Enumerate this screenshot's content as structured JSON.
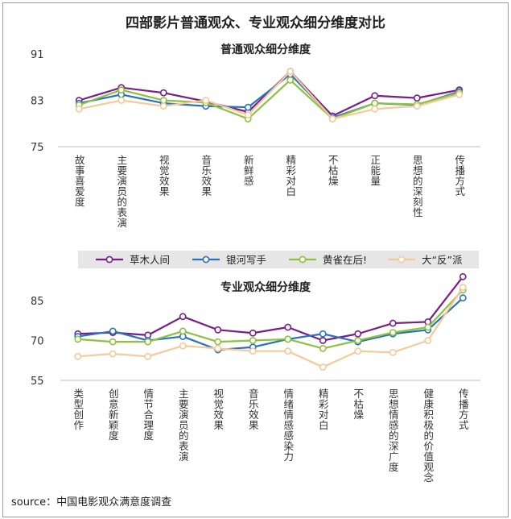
{
  "title": "四部影片普通观众、专业观众细分维度对比",
  "source_label": "source：中国电影观众满意度调查",
  "colors": {
    "草木人间": "#7a1d8a",
    "银河写手": "#2b72bd",
    "黄雀在后!": "#8cc23f",
    "大“反”派": "#f5c99a"
  },
  "legend": [
    "草木人间",
    "银河写手",
    "黄雀在后!",
    "大“反”派"
  ],
  "chart_data": [
    {
      "type": "line",
      "title": "普通观众细分维度",
      "xlabel": "",
      "ylabel": "",
      "ylim": [
        75,
        91
      ],
      "yticks": [
        "91",
        "83",
        "75"
      ],
      "categories": [
        "故事喜爱度",
        "主要演员的表演",
        "视觉效果",
        "音乐效果",
        "新鲜感",
        "精彩对白",
        "不枯燥",
        "正能量",
        "思想的深刻性",
        "传播方式"
      ],
      "series": [
        {
          "name": "草木人间",
          "values": [
            83.0,
            85.2,
            84.3,
            82.8,
            81.0,
            88.0,
            80.3,
            83.8,
            83.4,
            84.8
          ]
        },
        {
          "name": "银河写手",
          "values": [
            82.5,
            84.0,
            82.5,
            82.0,
            81.8,
            87.5,
            80.0,
            82.5,
            82.2,
            84.5
          ]
        },
        {
          "name": "黄雀在后!",
          "values": [
            82.2,
            84.8,
            83.0,
            82.6,
            79.8,
            86.5,
            79.8,
            82.5,
            82.3,
            84.3
          ]
        },
        {
          "name": "大“反”派",
          "values": [
            81.5,
            83.0,
            82.0,
            83.0,
            80.5,
            88.0,
            79.8,
            81.5,
            82.0,
            84.0
          ]
        }
      ]
    },
    {
      "type": "line",
      "title": "专业观众细分维度",
      "xlabel": "",
      "ylabel": "",
      "ylim": [
        55,
        95
      ],
      "yticks": [
        "85",
        "70",
        "55"
      ],
      "categories": [
        "类型创作",
        "创意新颖度",
        "情节合理度",
        "主要演员的表演",
        "视觉效果",
        "音乐效果",
        "情绪情感感染力",
        "精彩对白",
        "不枯燥",
        "思想情感的深广度",
        "健康积极的价值观念",
        "传播方式"
      ],
      "series": [
        {
          "name": "草木人间",
          "values": [
            72.5,
            73.0,
            72.0,
            79.0,
            74.0,
            72.8,
            75.0,
            70.0,
            72.5,
            76.5,
            77.0,
            94.0
          ]
        },
        {
          "name": "银河写手",
          "values": [
            71.5,
            73.5,
            70.0,
            71.5,
            66.5,
            67.5,
            70.5,
            72.5,
            69.5,
            72.5,
            74.0,
            86.0
          ]
        },
        {
          "name": "黄雀在后!",
          "values": [
            70.5,
            69.5,
            69.5,
            73.5,
            69.5,
            70.0,
            70.5,
            67.0,
            70.0,
            73.0,
            75.0,
            89.0
          ]
        },
        {
          "name": "大“反”派",
          "values": [
            64.0,
            65.0,
            64.0,
            68.0,
            67.0,
            66.0,
            66.0,
            60.0,
            66.0,
            65.5,
            70.0,
            90.0
          ]
        }
      ]
    }
  ]
}
